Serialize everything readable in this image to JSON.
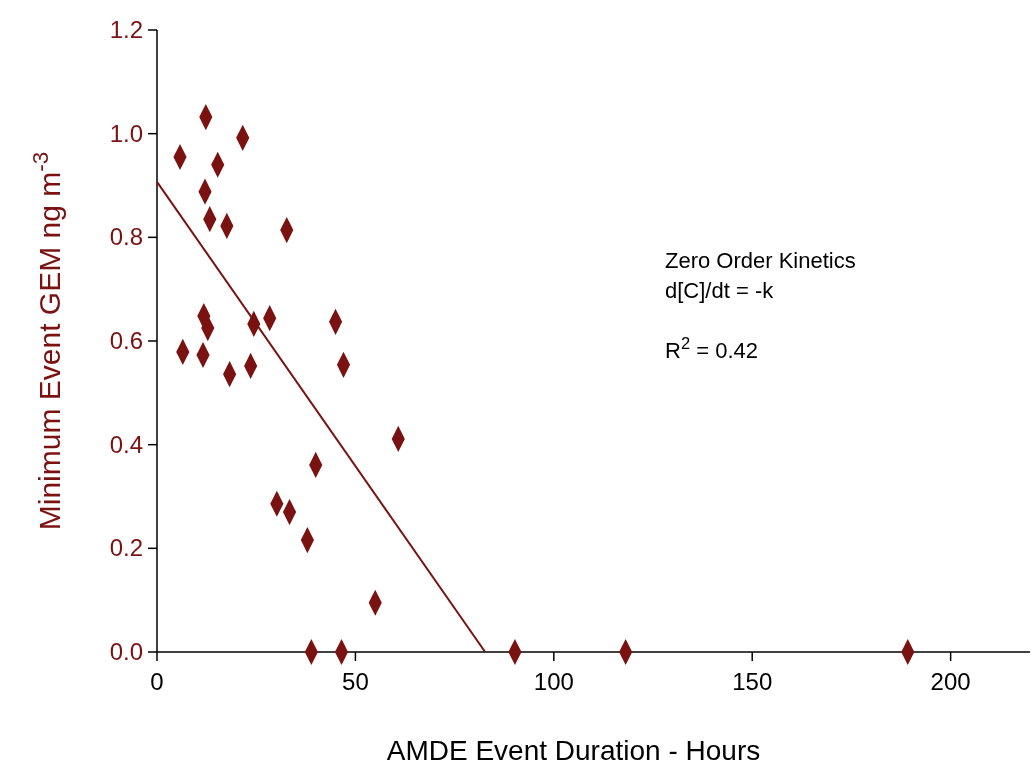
{
  "chart_data": {
    "type": "scatter",
    "xlabel": "AMDE Event Duration - Hours",
    "ylabel": "Minimum Event GEM ng m$^{-3}$",
    "xlim": [
      0,
      220
    ],
    "xticks": [
      0,
      50,
      100,
      150,
      200
    ],
    "ylim": [
      0,
      1.2
    ],
    "yticks": [
      {
        "value": 0,
        "label": "0.0"
      },
      {
        "value": 0.2,
        "label": "0.2"
      },
      {
        "value": 0.4,
        "label": "0.4"
      },
      {
        "value": 0.6,
        "label": "0.6"
      },
      {
        "value": 0.8,
        "label": "0.8"
      },
      {
        "value": 1,
        "label": "1.0"
      },
      {
        "value": 1.2,
        "label": "1.2"
      }
    ],
    "grid": false,
    "annotations": [
      "Zero Order Kinetics",
      "d[C]/dt = -k",
      "R$^{2}$ = 0.42"
    ],
    "series": [
      {
        "marker": "diamond",
        "color": "#7a1212",
        "x": [
          5.8,
          12.3,
          21.6,
          15.3,
          12.1,
          13.3,
          17.6,
          32.7,
          11.8,
          6.5,
          12.8,
          11.6,
          24.4,
          28.4,
          18.3,
          23.6,
          45,
          47,
          60.8,
          40,
          30.2,
          33.4,
          37.9,
          55,
          38.9,
          46.5,
          90.2,
          118.1,
          189.2
        ],
        "values": [
          0.955,
          1.032,
          0.992,
          0.94,
          0.888,
          0.835,
          0.822,
          0.814,
          0.648,
          0.579,
          0.625,
          0.573,
          0.633,
          0.644,
          0.536,
          0.552,
          0.637,
          0.554,
          0.411,
          0.361,
          0.286,
          0.27,
          0.216,
          0.095,
          0,
          0,
          0,
          0,
          0
        ]
      },
      {
        "type": "line",
        "color": "#7a1212",
        "line_style": "solid",
        "x": [
          0,
          82.7
        ],
        "values": [
          0.907,
          0
        ]
      }
    ]
  }
}
